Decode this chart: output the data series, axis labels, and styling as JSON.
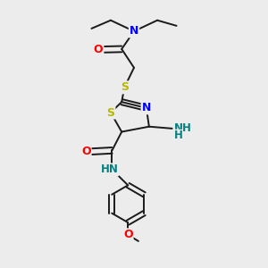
{
  "bg_color": "#ececec",
  "bond_color": "#1a1a1a",
  "bond_width": 1.4,
  "figsize": [
    3.0,
    3.0
  ],
  "dpi": 100,
  "xlim": [
    0.25,
    0.75
  ],
  "ylim": [
    0.02,
    0.98
  ]
}
